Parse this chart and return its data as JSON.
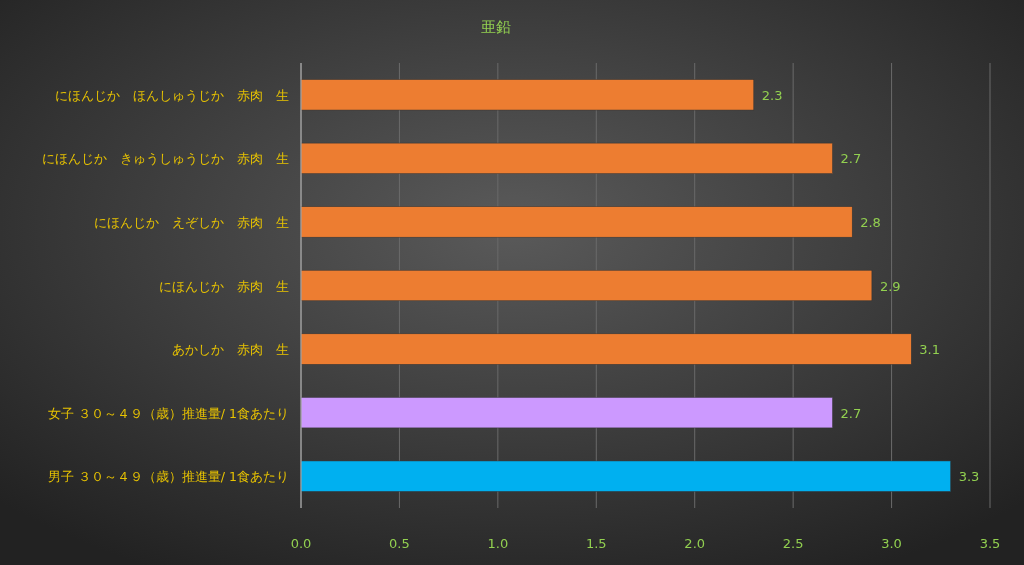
{
  "chart_data": {
    "type": "bar",
    "orientation": "horizontal",
    "title": "亜鉛",
    "categories": [
      "にほんじか　ほんしゅうじか　赤肉　生",
      "にほんじか　きゅうしゅうじか　赤肉　生",
      "にほんじか　えぞしか　赤肉　生",
      "にほんじか　赤肉　生",
      "あかしか　赤肉　生",
      "女子 ３０～４９（歳）推進量/ 1食あたり",
      "男子 ３０～４９（歳）推進量/ 1食あたり"
    ],
    "values": [
      2.3,
      2.7,
      2.8,
      2.9,
      3.1,
      2.7,
      3.3
    ],
    "colors": [
      "#ed7d31",
      "#ed7d31",
      "#ed7d31",
      "#ed7d31",
      "#ed7d31",
      "#cc99ff",
      "#00b0f0"
    ],
    "xlim": [
      0,
      3.5
    ],
    "xticks": [
      {
        "value": 0,
        "label": "0.0"
      },
      {
        "value": 0.5,
        "label": "0.5"
      },
      {
        "value": 1,
        "label": "1.0"
      },
      {
        "value": 1.5,
        "label": "1.5"
      },
      {
        "value": 2,
        "label": "2.0"
      },
      {
        "value": 2.5,
        "label": "2.5"
      },
      {
        "value": 3,
        "label": "3.0"
      },
      {
        "value": 3.5,
        "label": "3.5"
      }
    ],
    "grid": "x",
    "data_labels": true
  }
}
